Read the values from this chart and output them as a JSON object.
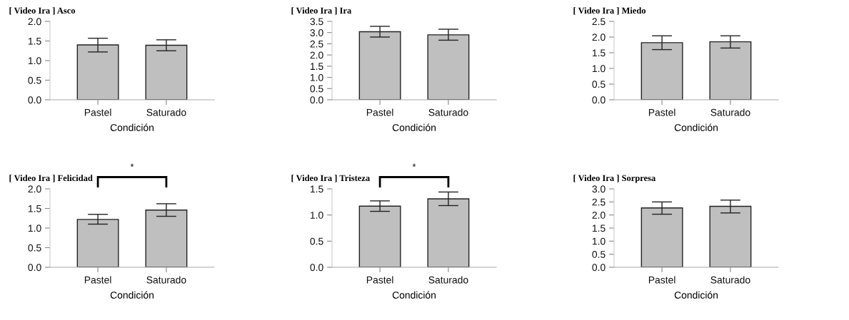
{
  "chart_data": [
    {
      "type": "bar",
      "title": "[ Video Ira ] Asco",
      "xlabel": "Condición",
      "categories": [
        "Pastel",
        "Saturado"
      ],
      "values": [
        1.4,
        1.39
      ],
      "errors": [
        [
          1.22,
          1.57
        ],
        [
          1.25,
          1.53
        ]
      ],
      "color": "#bfbfbf",
      "ylim": [
        0,
        2
      ],
      "yticks": [
        {
          "value": 0,
          "label": "0.0"
        },
        {
          "value": 0.5,
          "label": "0.5"
        },
        {
          "value": 1,
          "label": "1.0"
        },
        {
          "value": 1.5,
          "label": "1.5"
        },
        {
          "value": 2,
          "label": "2.0"
        }
      ]
    },
    {
      "type": "bar",
      "title": "[ Video Ira ] Ira",
      "xlabel": "Condición",
      "categories": [
        "Pastel",
        "Saturado"
      ],
      "values": [
        3.04,
        2.9
      ],
      "errors": [
        [
          2.8,
          3.28
        ],
        [
          2.66,
          3.15
        ]
      ],
      "color": "#bfbfbf",
      "ylim": [
        0,
        3.5
      ],
      "yticks": [
        {
          "value": 0,
          "label": "0.0"
        },
        {
          "value": 0.5,
          "label": "0.5"
        },
        {
          "value": 1,
          "label": "1.0"
        },
        {
          "value": 1.5,
          "label": "1.5"
        },
        {
          "value": 2,
          "label": "2.0"
        },
        {
          "value": 2.5,
          "label": "2.5"
        },
        {
          "value": 3,
          "label": "3.0"
        },
        {
          "value": 3.5,
          "label": "3.5"
        }
      ]
    },
    {
      "type": "bar",
      "title": "[ Video Ira ] Miedo",
      "xlabel": "Condición",
      "categories": [
        "Pastel",
        "Saturado"
      ],
      "values": [
        1.82,
        1.85
      ],
      "errors": [
        [
          1.6,
          2.04
        ],
        [
          1.65,
          2.04
        ]
      ],
      "color": "#bfbfbf",
      "ylim": [
        0,
        2.5
      ],
      "yticks": [
        {
          "value": 0,
          "label": "0.0"
        },
        {
          "value": 0.5,
          "label": "0.5"
        },
        {
          "value": 1,
          "label": "1.0"
        },
        {
          "value": 1.5,
          "label": "1.5"
        },
        {
          "value": 2,
          "label": "2.0"
        },
        {
          "value": 2.5,
          "label": "2.5"
        }
      ]
    },
    {
      "type": "bar",
      "title": "[ Video Ira ] Felicidad",
      "xlabel": "Condición",
      "categories": [
        "Pastel",
        "Saturado"
      ],
      "values": [
        1.22,
        1.46
      ],
      "errors": [
        [
          1.1,
          1.35
        ],
        [
          1.3,
          1.62
        ]
      ],
      "color": "#bfbfbf",
      "ylim": [
        0,
        2
      ],
      "yticks": [
        {
          "value": 0,
          "label": "0.0"
        },
        {
          "value": 0.5,
          "label": "0.5"
        },
        {
          "value": 1,
          "label": "1.0"
        },
        {
          "value": 1.5,
          "label": "1.5"
        },
        {
          "value": 2,
          "label": "2.0"
        }
      ],
      "annotations": [
        "*"
      ]
    },
    {
      "type": "bar",
      "title": "[ Video Ira ] Tristeza",
      "xlabel": "Condición",
      "categories": [
        "Pastel",
        "Saturado"
      ],
      "values": [
        1.17,
        1.31
      ],
      "errors": [
        [
          1.07,
          1.27
        ],
        [
          1.18,
          1.44
        ]
      ],
      "color": "#bfbfbf",
      "ylim": [
        0,
        1.5
      ],
      "yticks": [
        {
          "value": 0,
          "label": "0.0"
        },
        {
          "value": 0.5,
          "label": "0.5"
        },
        {
          "value": 1,
          "label": "1.0"
        },
        {
          "value": 1.5,
          "label": "1.5"
        }
      ],
      "annotations": [
        "*"
      ]
    },
    {
      "type": "bar",
      "title": "[ Video Ira ] Sorpresa",
      "xlabel": "Condición",
      "categories": [
        "Pastel",
        "Saturado"
      ],
      "values": [
        2.27,
        2.33
      ],
      "errors": [
        [
          2.03,
          2.5
        ],
        [
          2.08,
          2.57
        ]
      ],
      "color": "#bfbfbf",
      "ylim": [
        0,
        3
      ],
      "yticks": [
        {
          "value": 0,
          "label": "0.0"
        },
        {
          "value": 0.5,
          "label": "0.5"
        },
        {
          "value": 1,
          "label": "1.0"
        },
        {
          "value": 1.5,
          "label": "1.5"
        },
        {
          "value": 2,
          "label": "2.0"
        },
        {
          "value": 2.5,
          "label": "2.5"
        },
        {
          "value": 3,
          "label": "3.0"
        }
      ]
    }
  ]
}
